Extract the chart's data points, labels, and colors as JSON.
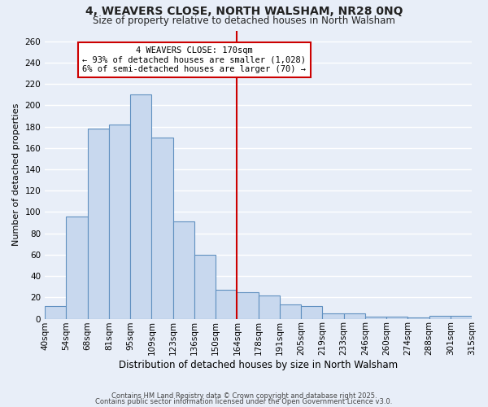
{
  "title": "4, WEAVERS CLOSE, NORTH WALSHAM, NR28 0NQ",
  "subtitle": "Size of property relative to detached houses in North Walsham",
  "xlabel": "Distribution of detached houses by size in North Walsham",
  "ylabel": "Number of detached properties",
  "bar_color": "#c8d8ee",
  "bar_edge_color": "#6090c0",
  "background_color": "#e8eef8",
  "grid_color": "#ffffff",
  "categories": [
    "40sqm",
    "54sqm",
    "68sqm",
    "81sqm",
    "95sqm",
    "109sqm",
    "123sqm",
    "136sqm",
    "150sqm",
    "164sqm",
    "178sqm",
    "191sqm",
    "205sqm",
    "219sqm",
    "233sqm",
    "246sqm",
    "260sqm",
    "274sqm",
    "288sqm",
    "301sqm",
    "315sqm"
  ],
  "values": [
    12,
    96,
    178,
    182,
    210,
    170,
    91,
    60,
    27,
    25,
    22,
    13,
    12,
    5,
    5,
    2,
    2,
    1,
    3,
    3
  ],
  "ylim": [
    0,
    270
  ],
  "yticks": [
    0,
    20,
    40,
    60,
    80,
    100,
    120,
    140,
    160,
    180,
    200,
    220,
    240,
    260
  ],
  "vline_pos": 9,
  "vline_color": "#cc0000",
  "annotation_title": "4 WEAVERS CLOSE: 170sqm",
  "annotation_line1": "← 93% of detached houses are smaller (1,028)",
  "annotation_line2": "6% of semi-detached houses are larger (70) →",
  "footer1": "Contains HM Land Registry data © Crown copyright and database right 2025.",
  "footer2": "Contains public sector information licensed under the Open Government Licence v3.0.",
  "title_fontsize": 10,
  "subtitle_fontsize": 8.5,
  "xlabel_fontsize": 8.5,
  "ylabel_fontsize": 8,
  "tick_fontsize": 7.5,
  "annotation_fontsize": 7.5,
  "footer_fontsize": 6
}
